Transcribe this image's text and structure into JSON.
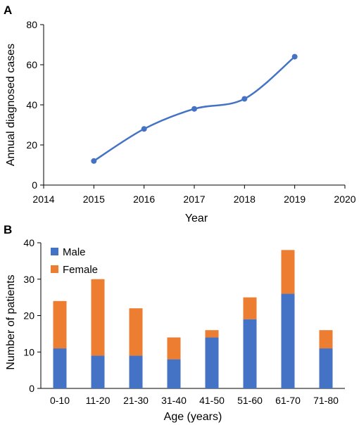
{
  "colors": {
    "line": "#4472C4",
    "male": "#4472C4",
    "female": "#ED7D31",
    "axis": "#000000"
  },
  "chart_data": [
    {
      "panel": "A",
      "type": "line",
      "smooth": true,
      "markers": true,
      "x": [
        2015,
        2016,
        2017,
        2018,
        2019
      ],
      "y": [
        12,
        28,
        38,
        43,
        64
      ],
      "xlabel": "Year",
      "ylabel": "Annual diagnosed cases",
      "xlim": [
        2014,
        2020
      ],
      "ylim": [
        0,
        80
      ],
      "xticks": [
        2014,
        2015,
        2016,
        2017,
        2018,
        2019,
        2020
      ],
      "yticks": [
        0,
        20,
        40,
        60,
        80
      ],
      "grid": false,
      "legend": "none"
    },
    {
      "panel": "B",
      "type": "bar",
      "stacked": true,
      "categories": [
        "0-10",
        "11-20",
        "21-30",
        "31-40",
        "41-50",
        "51-60",
        "61-70",
        "71-80"
      ],
      "series": [
        {
          "name": "Male",
          "values": [
            11,
            9,
            9,
            8,
            14,
            19,
            26,
            11
          ]
        },
        {
          "name": "Female",
          "values": [
            13,
            21,
            13,
            6,
            2,
            6,
            12,
            5
          ]
        }
      ],
      "xlabel": "Age (years)",
      "ylabel": "Number of patients",
      "ylim": [
        0,
        40
      ],
      "yticks": [
        0,
        10,
        20,
        30,
        40
      ],
      "grid": false,
      "legend": "top-left"
    }
  ]
}
